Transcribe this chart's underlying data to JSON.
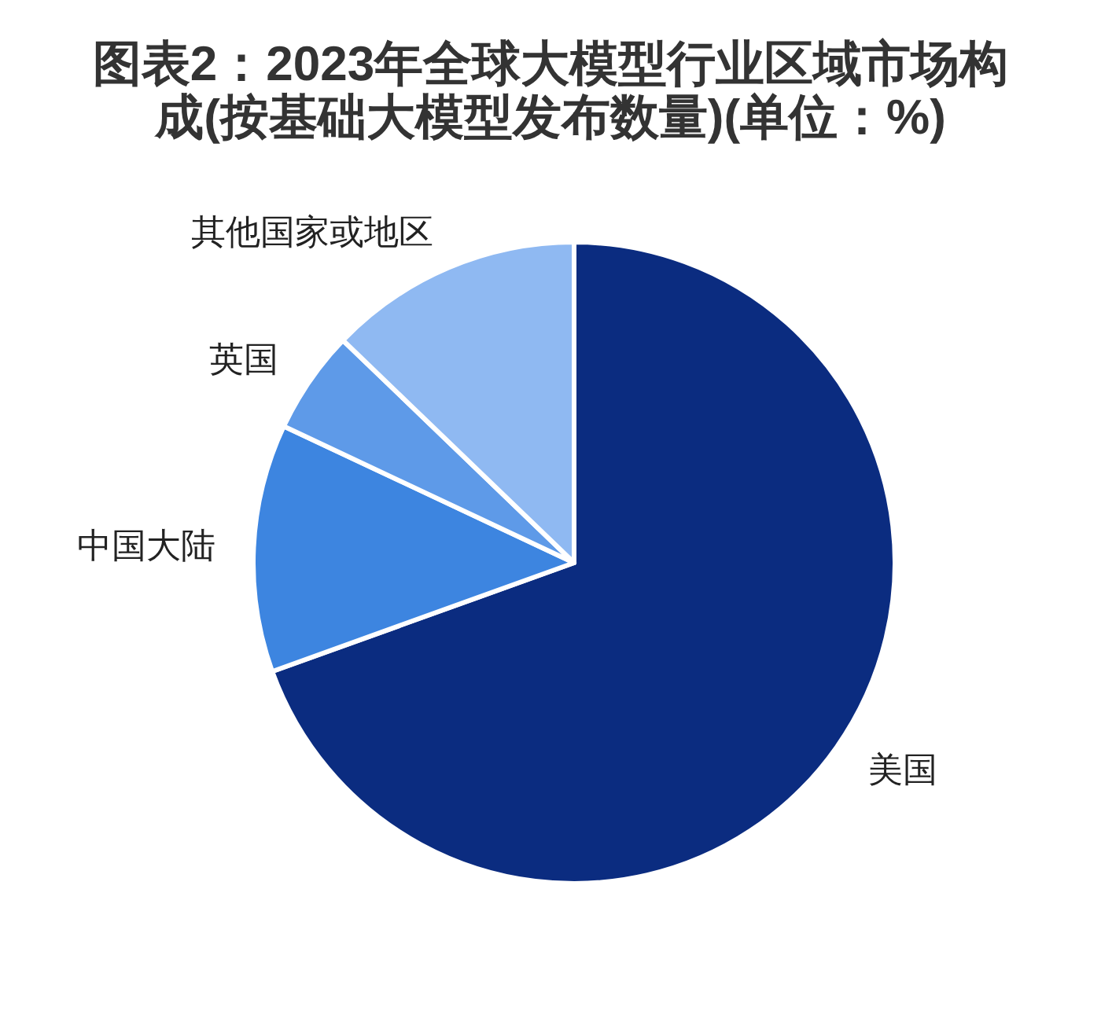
{
  "chart_data": {
    "type": "pie",
    "title": "图表2：2023年全球大模型行业区域市场构成(按基础大模型发布数量)(单位：%)",
    "categories": [
      "美国",
      "中国大陆",
      "英国",
      "其他国家或地区"
    ],
    "values": [
      69.5,
      12.5,
      5.2,
      12.8
    ],
    "colors": [
      "#0b2c80",
      "#3d85e0",
      "#5e9ae8",
      "#8fb9f2"
    ]
  }
}
